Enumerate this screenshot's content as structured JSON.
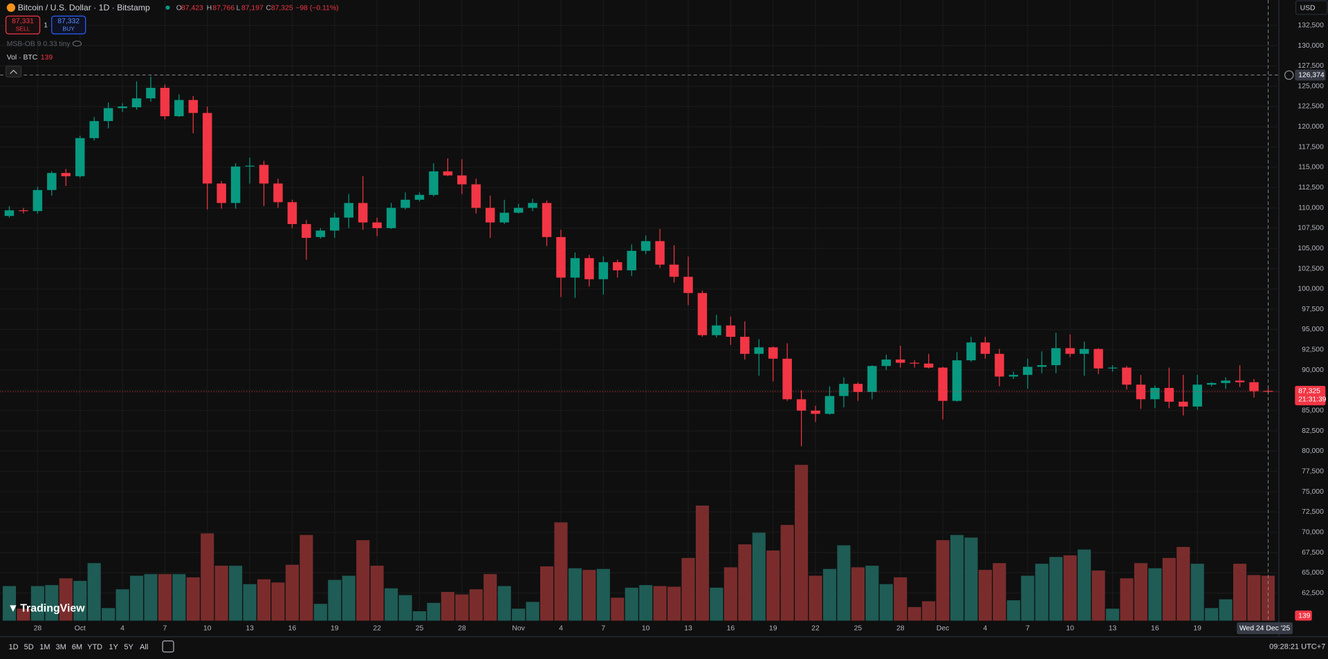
{
  "header": {
    "title": "Bitcoin / U.S. Dollar · 1D · Bitstamp",
    "ohlc": [
      {
        "k": "O",
        "v": "87,423"
      },
      {
        "k": "H",
        "v": "87,766"
      },
      {
        "k": "L",
        "v": "87,197"
      },
      {
        "k": "C",
        "v": "87,325"
      }
    ],
    "change": "−98 (−0.11%)",
    "sell_price": "87,331",
    "sell": "SELL",
    "spread": "1",
    "buy_price": "87,332",
    "buy": "BUY",
    "indicator": "MSB-OB 9 0.33 tiny",
    "volume_label": "Vol · BTC",
    "currency": "USD",
    "logo": "TradingView"
  },
  "toolbar": {
    "ranges": [
      "1D",
      "5D",
      "1M",
      "3M",
      "6M",
      "YTD",
      "1Y",
      "5Y",
      "All"
    ],
    "clock": "09:28:21 UTC+7"
  },
  "chart_data": {
    "type": "candlestick",
    "up_color": "#089981",
    "down_color": "#f23645",
    "volume_up_color": "#1e5c55",
    "volume_down_color": "#7a2c2c",
    "categories": [
      null,
      null,
      "28",
      null,
      null,
      "Oct",
      null,
      null,
      "4",
      null,
      null,
      "7",
      null,
      null,
      "10",
      null,
      null,
      "13",
      null,
      null,
      "16",
      null,
      null,
      "19",
      null,
      null,
      "22",
      null,
      null,
      "25",
      null,
      null,
      "28",
      null,
      null,
      null,
      "Nov",
      null,
      null,
      "4",
      null,
      null,
      "7",
      null,
      null,
      "10",
      null,
      null,
      "13",
      null,
      null,
      "16",
      null,
      null,
      "19",
      null,
      null,
      "22",
      null,
      null,
      "25",
      null,
      null,
      "28",
      null,
      null,
      "Dec",
      null,
      null,
      "4",
      null,
      null,
      "7",
      null,
      null,
      "10",
      null,
      null,
      "13",
      null,
      null,
      "16",
      null,
      null,
      "19",
      null,
      null,
      null,
      null,
      null
    ],
    "open": [
      109000,
      109700,
      109600,
      112200,
      114300,
      113900,
      118600,
      120700,
      122300,
      122400,
      123500,
      124800,
      121300,
      123300,
      121700,
      113000,
      110600,
      115100,
      115300,
      113000,
      110700,
      108000,
      106400,
      107200,
      108800,
      110600,
      108200,
      107500,
      110000,
      111000,
      111600,
      114500,
      114000,
      112900,
      110000,
      108200,
      109400,
      110000,
      110600,
      106400,
      101400,
      103800,
      101200,
      103300,
      102300,
      104700,
      105900,
      103000,
      101500,
      99500,
      94300,
      95500,
      94100,
      92000,
      92800,
      91400,
      86400,
      85000,
      84600,
      86800,
      88300,
      87300,
      90500,
      91300,
      90900,
      90800,
      90300,
      86200,
      91200,
      93400,
      92000,
      89200,
      89400,
      90400,
      90600,
      92700,
      92000,
      92600,
      90200,
      90300,
      88200,
      86400,
      87800,
      86100,
      85500,
      88200,
      88400,
      88700,
      88500,
      87423
    ],
    "high": [
      110200,
      110000,
      112600,
      114500,
      114800,
      118900,
      121200,
      123000,
      122900,
      125600,
      126200,
      125200,
      124000,
      123800,
      122500,
      113300,
      115500,
      116200,
      115800,
      113600,
      111000,
      108500,
      107500,
      109400,
      111700,
      113900,
      108800,
      110600,
      111900,
      111900,
      115500,
      116100,
      116000,
      113600,
      111500,
      111000,
      110500,
      111100,
      110900,
      107300,
      104500,
      104200,
      104000,
      103600,
      105500,
      106600,
      107400,
      105400,
      104000,
      99800,
      96800,
      96600,
      96000,
      93800,
      92900,
      93300,
      87500,
      85600,
      88000,
      89100,
      88500,
      90600,
      91900,
      93000,
      91200,
      92000,
      90400,
      92200,
      94100,
      94100,
      92600,
      89800,
      91400,
      92300,
      94600,
      94400,
      93500,
      92700,
      90600,
      90500,
      89400,
      88100,
      90300,
      89400,
      89400,
      88500,
      89100,
      90600,
      88900,
      87766
    ],
    "low": [
      108800,
      109300,
      109300,
      111500,
      112700,
      113700,
      118300,
      119800,
      121800,
      122100,
      123100,
      120900,
      121200,
      119200,
      109800,
      109900,
      109900,
      113000,
      110200,
      110000,
      107500,
      103600,
      106200,
      106300,
      107500,
      107300,
      106500,
      107400,
      109800,
      110800,
      111400,
      113900,
      111700,
      109300,
      106300,
      108000,
      109300,
      109600,
      105300,
      99000,
      98900,
      100300,
      99300,
      101400,
      101600,
      104300,
      102600,
      100800,
      98000,
      94100,
      94000,
      93100,
      91300,
      89300,
      88600,
      86200,
      80600,
      83600,
      84500,
      85400,
      86200,
      86400,
      90000,
      90300,
      90300,
      90200,
      83900,
      86100,
      91000,
      91400,
      88000,
      88900,
      87700,
      89600,
      89600,
      91600,
      89300,
      89500,
      89800,
      87600,
      85200,
      85300,
      85300,
      84400,
      85100,
      88000,
      87700,
      87900,
      86600,
      87197
    ],
    "close": [
      109700,
      109600,
      112200,
      114300,
      113900,
      118600,
      120700,
      122300,
      122500,
      123500,
      124800,
      121300,
      123300,
      121700,
      113000,
      110600,
      115100,
      115200,
      113000,
      110700,
      108000,
      106300,
      107200,
      108800,
      110600,
      108200,
      107500,
      110000,
      111000,
      111600,
      114500,
      114000,
      112900,
      110000,
      108200,
      109400,
      110000,
      110600,
      106400,
      101400,
      103800,
      101200,
      103300,
      102300,
      104700,
      105900,
      103000,
      101500,
      99500,
      94300,
      95500,
      94100,
      92000,
      92800,
      91400,
      86400,
      85000,
      84600,
      86800,
      88300,
      87300,
      90500,
      91300,
      90900,
      90800,
      90300,
      86200,
      91200,
      93400,
      92000,
      89200,
      89400,
      90400,
      90600,
      92700,
      92000,
      92600,
      90200,
      90300,
      88200,
      86400,
      87800,
      86100,
      85500,
      88200,
      88400,
      88700,
      88500,
      87400,
      87325
    ],
    "volume": [
      107,
      37,
      107,
      110,
      131,
      123,
      178,
      39,
      97,
      139,
      144,
      144,
      144,
      134,
      270,
      170,
      170,
      113,
      128,
      118,
      173,
      265,
      52,
      126,
      139,
      249,
      170,
      100,
      79,
      29,
      55,
      89,
      81,
      97,
      144,
      107,
      37,
      58,
      168,
      304,
      162,
      157,
      160,
      71,
      102,
      110,
      107,
      105,
      194,
      356,
      102,
      165,
      236,
      272,
      217,
      296,
      482,
      139,
      160,
      233,
      165,
      170,
      113,
      134,
      42,
      60,
      249,
      265,
      257,
      157,
      178,
      63,
      139,
      176,
      197,
      202,
      220,
      155,
      37,
      131,
      178,
      162,
      194,
      228,
      176,
      39,
      66,
      176,
      141,
      139
    ],
    "ylim": [
      59100,
      135630
    ],
    "volume_lim": [
      0,
      1920
    ],
    "yticks": [
      {
        "value": 132500,
        "label": "132,500"
      },
      {
        "value": 130000,
        "label": "130,000"
      },
      {
        "value": 127500,
        "label": "127,500"
      },
      {
        "value": 125000,
        "label": "125,000"
      },
      {
        "value": 122500,
        "label": "122,500"
      },
      {
        "value": 120000,
        "label": "120,000"
      },
      {
        "value": 117500,
        "label": "117,500"
      },
      {
        "value": 115000,
        "label": "115,000"
      },
      {
        "value": 112500,
        "label": "112,500"
      },
      {
        "value": 110000,
        "label": "110,000"
      },
      {
        "value": 107500,
        "label": "107,500"
      },
      {
        "value": 105000,
        "label": "105,000"
      },
      {
        "value": 102500,
        "label": "102,500"
      },
      {
        "value": 100000,
        "label": "100,000"
      },
      {
        "value": 97500,
        "label": "97,500"
      },
      {
        "value": 95000,
        "label": "95,000"
      },
      {
        "value": 92500,
        "label": "92,500"
      },
      {
        "value": 90000,
        "label": "90,000"
      },
      {
        "value": 87500,
        "label": "87,500"
      },
      {
        "value": 85000,
        "label": "85,000"
      },
      {
        "value": 82500,
        "label": "82,500"
      },
      {
        "value": 80000,
        "label": "80,000"
      },
      {
        "value": 77500,
        "label": "77,500"
      },
      {
        "value": 75000,
        "label": "75,000"
      },
      {
        "value": 72500,
        "label": "72,500"
      },
      {
        "value": 70000,
        "label": "70,000"
      },
      {
        "value": 67500,
        "label": "67,500"
      },
      {
        "value": 65000,
        "label": "65,000"
      },
      {
        "value": 62500,
        "label": "62,500"
      }
    ],
    "grid": true,
    "crosshair": {
      "value": 126374,
      "label": "126,374",
      "date_label": "Wed 24 Dec '25"
    },
    "price_tag": {
      "label": "87,325",
      "countdown": "21:31:39"
    }
  }
}
